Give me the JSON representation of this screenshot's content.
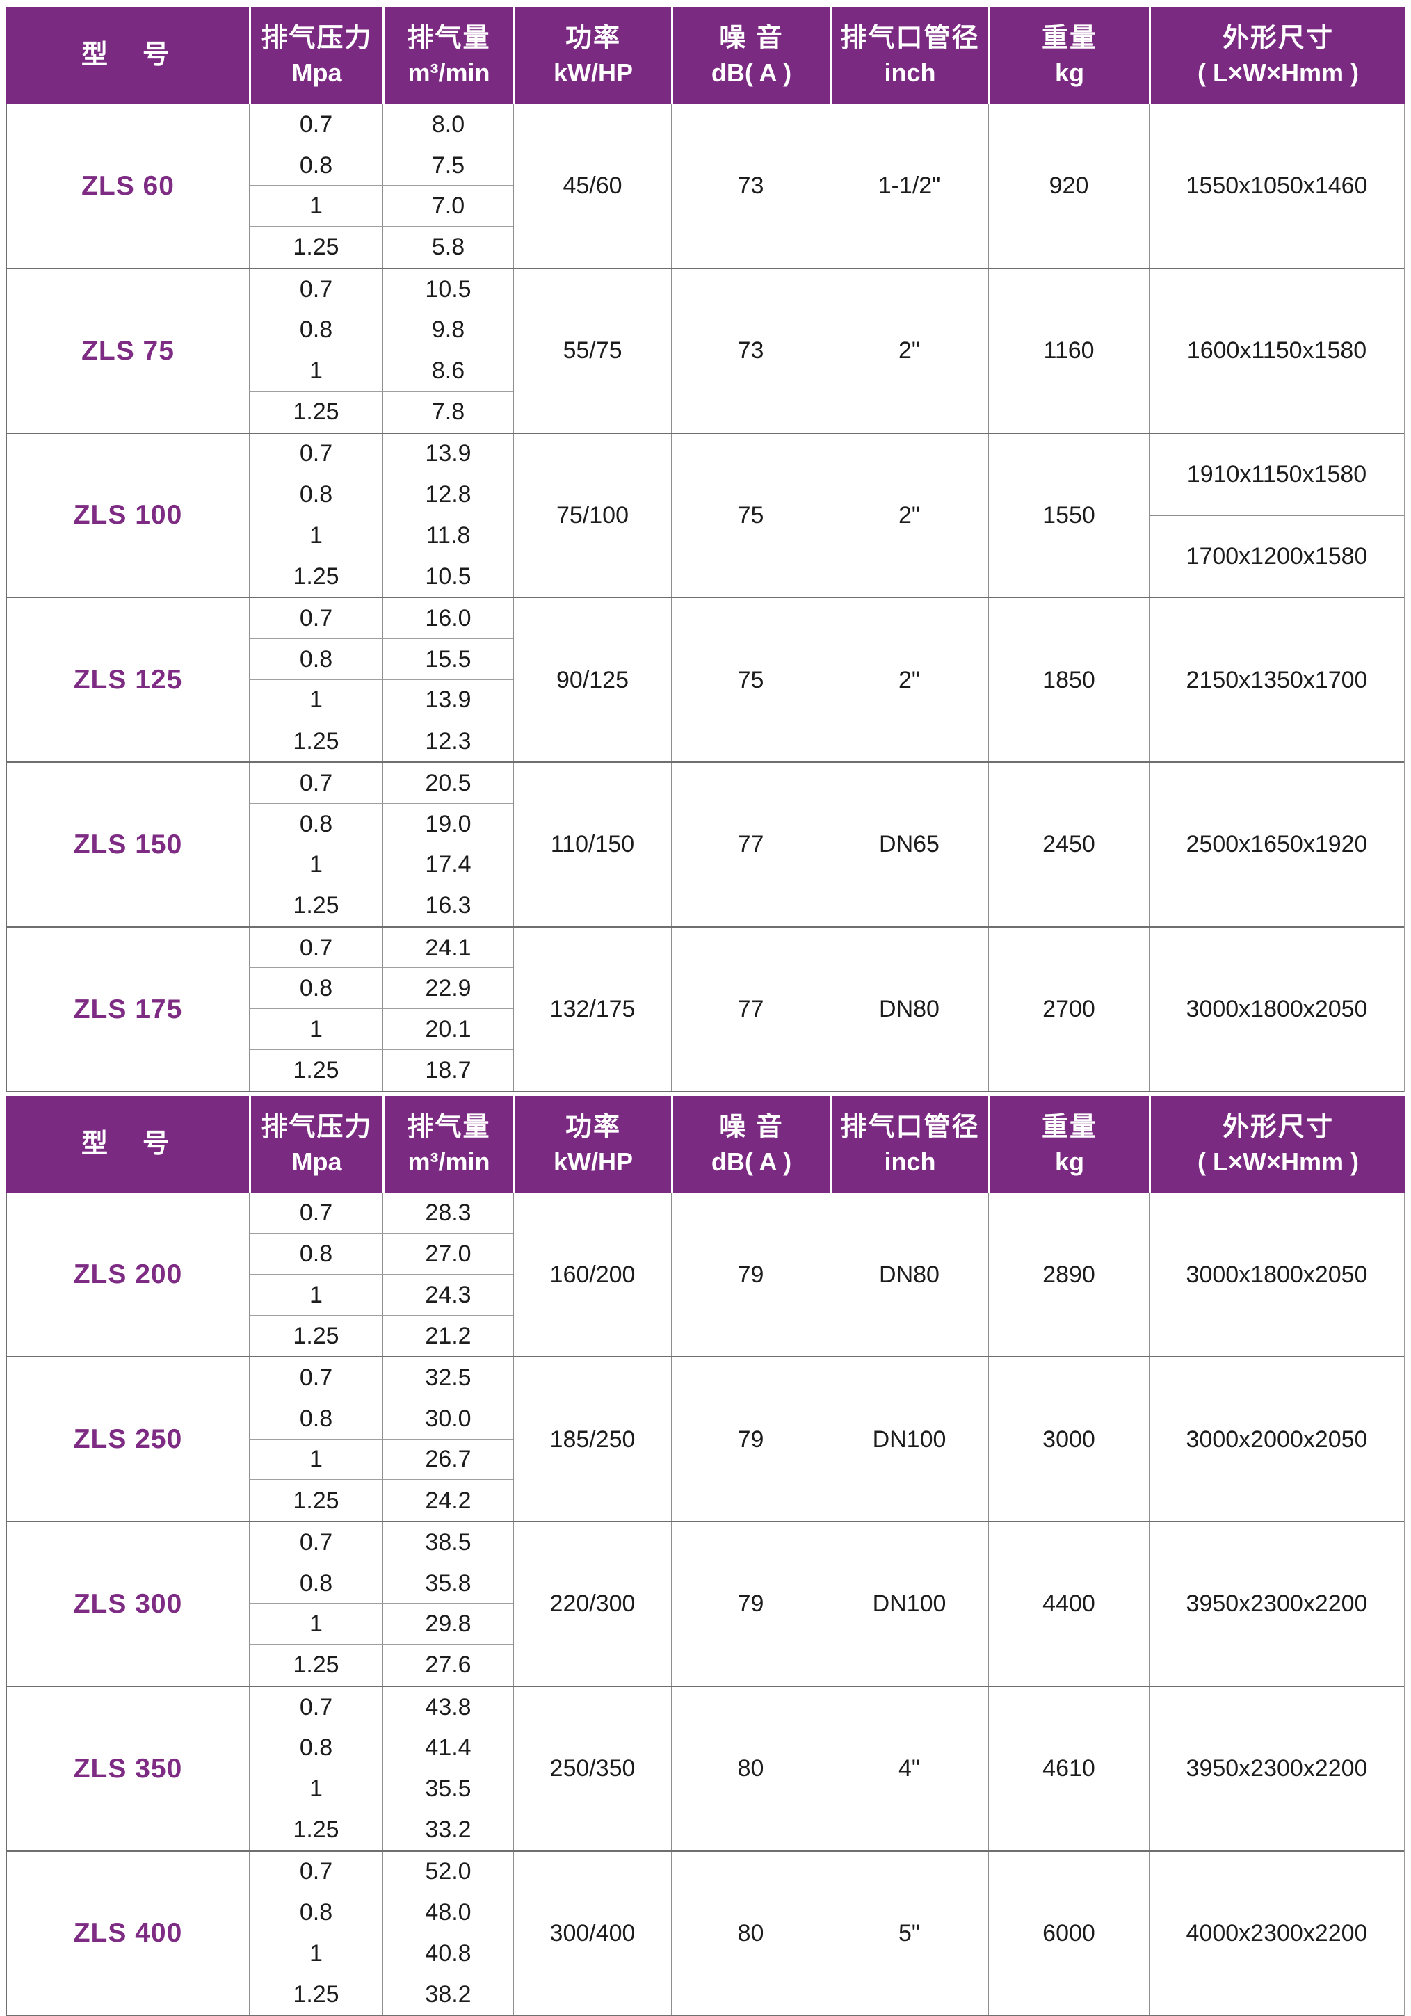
{
  "colors": {
    "header_bg": "#7b2a82",
    "model_text": "#7d2b83",
    "grid_line": "#8f8f8f",
    "subrow_line": "#a0a0a0",
    "block_separator": "#6f6f6f",
    "body_text": "#1c1c1c"
  },
  "header": {
    "model": "型　号",
    "pressure_l1": "排气压力",
    "pressure_l2": "Mpa",
    "flow_l1": "排气量",
    "flow_l2": "m³/min",
    "power_l1": "功率",
    "power_l2": "kW/HP",
    "noise_l1": "噪 音",
    "noise_l2": "dB( A )",
    "pipe_l1": "排气口管径",
    "pipe_l2": "inch",
    "weight_l1": "重量",
    "weight_l2": "kg",
    "dims_l1": "外形尺寸",
    "dims_l2": "( L×W×Hmm )"
  },
  "sections": [
    {
      "models": [
        {
          "model": "ZLS 60",
          "pressures": [
            "0.7",
            "0.8",
            "1",
            "1.25"
          ],
          "flows": [
            "8.0",
            "7.5",
            "7.0",
            "5.8"
          ],
          "power": "45/60",
          "noise": "73",
          "pipe": "1-1/2\"",
          "weight": "920",
          "dims": [
            "1550x1050x1460"
          ]
        },
        {
          "model": "ZLS 75",
          "pressures": [
            "0.7",
            "0.8",
            "1",
            "1.25"
          ],
          "flows": [
            "10.5",
            "9.8",
            "8.6",
            "7.8"
          ],
          "power": "55/75",
          "noise": "73",
          "pipe": "2\"",
          "weight": "1160",
          "dims": [
            "1600x1150x1580"
          ]
        },
        {
          "model": "ZLS 100",
          "pressures": [
            "0.7",
            "0.8",
            "1",
            "1.25"
          ],
          "flows": [
            "13.9",
            "12.8",
            "11.8",
            "10.5"
          ],
          "power": "75/100",
          "noise": "75",
          "pipe": "2\"",
          "weight": "1550",
          "dims": [
            "1910x1150x1580",
            "1700x1200x1580"
          ]
        },
        {
          "model": "ZLS 125",
          "pressures": [
            "0.7",
            "0.8",
            "1",
            "1.25"
          ],
          "flows": [
            "16.0",
            "15.5",
            "13.9",
            "12.3"
          ],
          "power": "90/125",
          "noise": "75",
          "pipe": "2\"",
          "weight": "1850",
          "dims": [
            "2150x1350x1700"
          ]
        },
        {
          "model": "ZLS 150",
          "pressures": [
            "0.7",
            "0.8",
            "1",
            "1.25"
          ],
          "flows": [
            "20.5",
            "19.0",
            "17.4",
            "16.3"
          ],
          "power": "110/150",
          "noise": "77",
          "pipe": "DN65",
          "weight": "2450",
          "dims": [
            "2500x1650x1920"
          ]
        },
        {
          "model": "ZLS 175",
          "pressures": [
            "0.7",
            "0.8",
            "1",
            "1.25"
          ],
          "flows": [
            "24.1",
            "22.9",
            "20.1",
            "18.7"
          ],
          "power": "132/175",
          "noise": "77",
          "pipe": "DN80",
          "weight": "2700",
          "dims": [
            "3000x1800x2050"
          ]
        }
      ]
    },
    {
      "models": [
        {
          "model": "ZLS 200",
          "pressures": [
            "0.7",
            "0.8",
            "1",
            "1.25"
          ],
          "flows": [
            "28.3",
            "27.0",
            "24.3",
            "21.2"
          ],
          "power": "160/200",
          "noise": "79",
          "pipe": "DN80",
          "weight": "2890",
          "dims": [
            "3000x1800x2050"
          ]
        },
        {
          "model": "ZLS 250",
          "pressures": [
            "0.7",
            "0.8",
            "1",
            "1.25"
          ],
          "flows": [
            "32.5",
            "30.0",
            "26.7",
            "24.2"
          ],
          "power": "185/250",
          "noise": "79",
          "pipe": "DN100",
          "weight": "3000",
          "dims": [
            "3000x2000x2050"
          ]
        },
        {
          "model": "ZLS 300",
          "pressures": [
            "0.7",
            "0.8",
            "1",
            "1.25"
          ],
          "flows": [
            "38.5",
            "35.8",
            "29.8",
            "27.6"
          ],
          "power": "220/300",
          "noise": "79",
          "pipe": "DN100",
          "weight": "4400",
          "dims": [
            "3950x2300x2200"
          ]
        },
        {
          "model": "ZLS 350",
          "pressures": [
            "0.7",
            "0.8",
            "1",
            "1.25"
          ],
          "flows": [
            "43.8",
            "41.4",
            "35.5",
            "33.2"
          ],
          "power": "250/350",
          "noise": "80",
          "pipe": "4\"",
          "weight": "4610",
          "dims": [
            "3950x2300x2200"
          ]
        },
        {
          "model": "ZLS 400",
          "pressures": [
            "0.7",
            "0.8",
            "1",
            "1.25"
          ],
          "flows": [
            "52.0",
            "48.0",
            "40.8",
            "38.2"
          ],
          "power": "300/400",
          "noise": "80",
          "pipe": "5\"",
          "weight": "6000",
          "dims": [
            "4000x2300x2200"
          ]
        }
      ]
    }
  ]
}
